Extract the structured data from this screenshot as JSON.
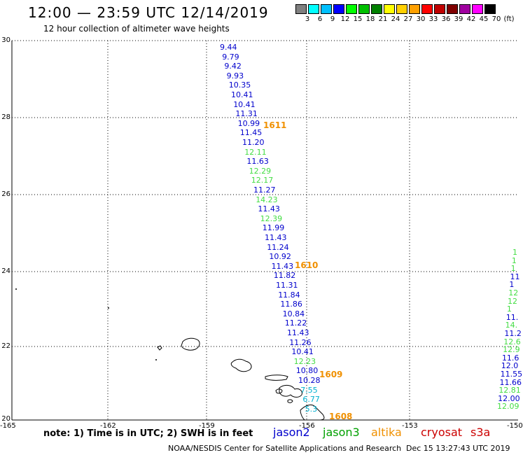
{
  "header": {
    "title": "12:00 — 23:59 UTC 12/14/2019",
    "subtitle": "12 hour collection of altimeter wave heights"
  },
  "scale": {
    "swatches": [
      "#808080",
      "#00ffff",
      "#00c0ff",
      "#0000ff",
      "#00ff00",
      "#00c000",
      "#008000",
      "#ffff00",
      "#ffd000",
      "#ffa000",
      "#ff0000",
      "#c00000",
      "#800000",
      "#a000a0",
      "#ff00ff",
      "#000000"
    ],
    "labels": [
      "3",
      "6",
      "9",
      "12",
      "15",
      "18",
      "21",
      "24",
      "27",
      "30",
      "33",
      "36",
      "39",
      "42",
      "45",
      "70",
      "(ft)"
    ]
  },
  "axes": {
    "y_ticks": [
      "30",
      "28",
      "26",
      "24",
      "22",
      "20"
    ],
    "x_ticks": [
      "-165",
      "-162",
      "-159",
      "-156",
      "-153",
      "-150"
    ]
  },
  "track_main": {
    "colors": {
      "blue": "#0000cc",
      "green": "#44dd44",
      "cyan": "#00b0d0"
    },
    "values": [
      {
        "v": "9.44",
        "c": "blue"
      },
      {
        "v": "9.79",
        "c": "blue"
      },
      {
        "v": "9.42",
        "c": "blue"
      },
      {
        "v": "9.93",
        "c": "blue"
      },
      {
        "v": "10.35",
        "c": "blue"
      },
      {
        "v": "10.41",
        "c": "blue"
      },
      {
        "v": "10.41",
        "c": "blue"
      },
      {
        "v": "11.31",
        "c": "blue"
      },
      {
        "v": "10.99",
        "c": "blue"
      },
      {
        "v": "11.45",
        "c": "blue"
      },
      {
        "v": "11.20",
        "c": "blue"
      },
      {
        "v": "12.11",
        "c": "green"
      },
      {
        "v": "11.63",
        "c": "blue"
      },
      {
        "v": "12.29",
        "c": "green"
      },
      {
        "v": "12.17",
        "c": "green"
      },
      {
        "v": "11.27",
        "c": "blue"
      },
      {
        "v": "14.23",
        "c": "green"
      },
      {
        "v": "11.43",
        "c": "blue"
      },
      {
        "v": "12.39",
        "c": "green"
      },
      {
        "v": "11.99",
        "c": "blue"
      },
      {
        "v": "11.43",
        "c": "blue"
      },
      {
        "v": "11.24",
        "c": "blue"
      },
      {
        "v": "10.92",
        "c": "blue"
      },
      {
        "v": "11.43",
        "c": "blue"
      },
      {
        "v": "11.82",
        "c": "blue"
      },
      {
        "v": "11.31",
        "c": "blue"
      },
      {
        "v": "11.84",
        "c": "blue"
      },
      {
        "v": "11.86",
        "c": "blue"
      },
      {
        "v": "10.84",
        "c": "blue"
      },
      {
        "v": "11.22",
        "c": "blue"
      },
      {
        "v": "11.43",
        "c": "blue"
      },
      {
        "v": "11.26",
        "c": "blue"
      },
      {
        "v": "10.41",
        "c": "blue"
      },
      {
        "v": "12.23",
        "c": "green"
      },
      {
        "v": "10.80",
        "c": "blue"
      },
      {
        "v": "10.28",
        "c": "blue"
      },
      {
        "v": "7.55",
        "c": "cyan"
      },
      {
        "v": "6.77",
        "c": "cyan"
      },
      {
        "v": "5.3",
        "c": "cyan"
      }
    ],
    "pass_labels": [
      "1611",
      "1610",
      "1609",
      "1608"
    ]
  },
  "track_east": {
    "values": [
      {
        "v": "1",
        "c": "green"
      },
      {
        "v": "1",
        "c": "green"
      },
      {
        "v": "1",
        "c": "green"
      },
      {
        "v": "11",
        "c": "blue"
      },
      {
        "v": "1",
        "c": "blue"
      },
      {
        "v": "12",
        "c": "green"
      },
      {
        "v": "12",
        "c": "green"
      },
      {
        "v": "1",
        "c": "green"
      },
      {
        "v": "11.",
        "c": "blue"
      },
      {
        "v": "14.",
        "c": "green"
      },
      {
        "v": "11.2",
        "c": "blue"
      },
      {
        "v": "12.6",
        "c": "green"
      },
      {
        "v": "12.9",
        "c": "green"
      },
      {
        "v": "11.6",
        "c": "blue"
      },
      {
        "v": "12.0",
        "c": "blue"
      },
      {
        "v": "11.55",
        "c": "blue"
      },
      {
        "v": "11.66",
        "c": "blue"
      },
      {
        "v": "12.81",
        "c": "green"
      },
      {
        "v": "12.00",
        "c": "blue"
      },
      {
        "v": "12.09",
        "c": "green"
      }
    ]
  },
  "footer": {
    "note": "note:  1) Time is in UTC;  2) SWH is in feet",
    "satellites": [
      {
        "name": "jason2",
        "color": "#0000cc"
      },
      {
        "name": "jason3",
        "color": "#00a000"
      },
      {
        "name": "altika",
        "color": "#f09000"
      },
      {
        "name": "cryosat",
        "color": "#cc0000"
      },
      {
        "name": "s3a",
        "color": "#cc0000"
      }
    ],
    "credit": "NOAA/NESDIS Center for Satellite Applications and Research",
    "timestamp": "Dec 15 13:27:43 UTC 2019"
  }
}
